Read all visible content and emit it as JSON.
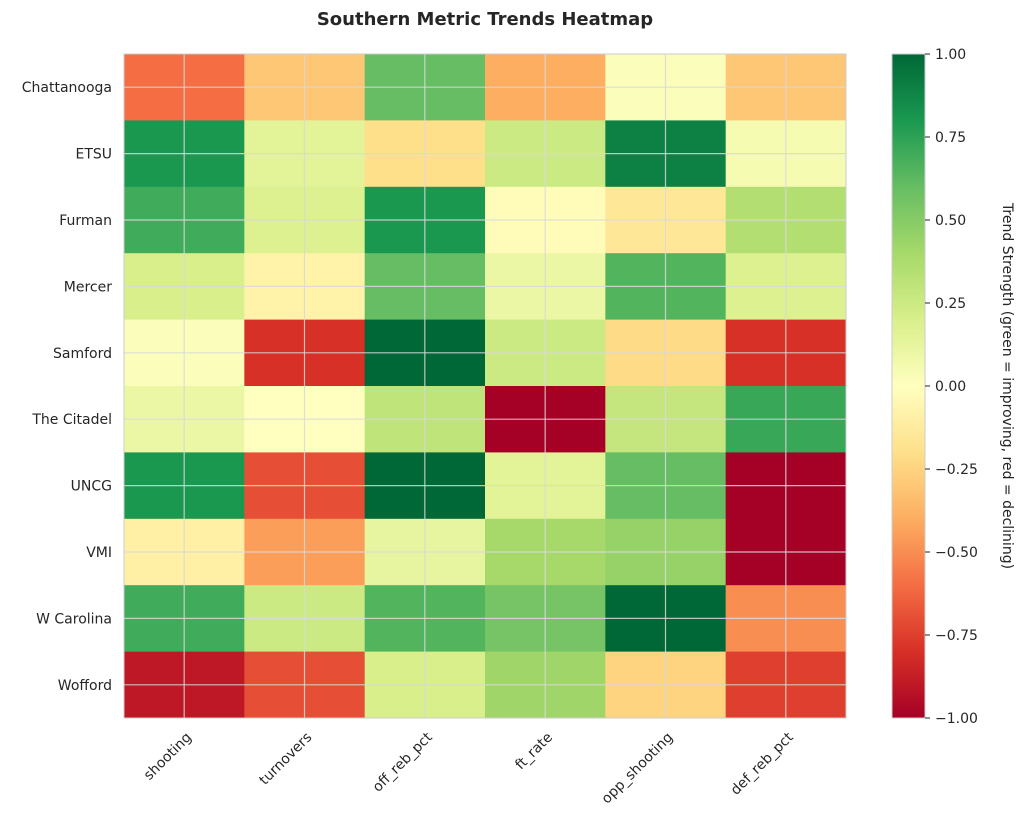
{
  "chart_data": {
    "type": "heatmap",
    "title": "Southern Metric Trends Heatmap",
    "rows": [
      "Chattanooga",
      "ETSU",
      "Furman",
      "Mercer",
      "Samford",
      "The Citadel",
      "UNCG",
      "VMI",
      "W Carolina",
      "Wofford"
    ],
    "columns": [
      "shooting",
      "turnovers",
      "off_reb_pct",
      "ft_rate",
      "opp_shooting",
      "def_reb_pct"
    ],
    "values": [
      [
        -0.6,
        -0.3,
        0.6,
        -0.4,
        0.02,
        -0.3
      ],
      [
        0.8,
        0.15,
        -0.2,
        0.25,
        0.9,
        0.05
      ],
      [
        0.7,
        0.18,
        0.8,
        -0.02,
        -0.15,
        0.35
      ],
      [
        0.2,
        -0.08,
        0.6,
        0.1,
        0.65,
        0.18
      ],
      [
        0.02,
        -0.8,
        1.0,
        0.25,
        -0.22,
        -0.8
      ],
      [
        0.1,
        0.0,
        0.3,
        -1.0,
        0.28,
        0.72
      ],
      [
        0.8,
        -0.7,
        1.0,
        0.15,
        0.6,
        -1.0
      ],
      [
        -0.1,
        -0.45,
        0.12,
        0.4,
        0.45,
        -1.0
      ],
      [
        0.7,
        0.25,
        0.65,
        0.55,
        1.0,
        -0.5
      ],
      [
        -0.9,
        -0.7,
        0.2,
        0.42,
        -0.25,
        -0.75
      ]
    ],
    "vmin": -1.0,
    "vmax": 1.0,
    "colormap": "RdYlGn",
    "colorbar": {
      "label": "Trend Strength (green = improving, red = declining)",
      "ticks": [
        1.0,
        0.75,
        0.5,
        0.25,
        0.0,
        -0.25,
        -0.5,
        -0.75,
        -1.0
      ],
      "tick_labels": [
        "1.00",
        "0.75",
        "0.50",
        "0.25",
        "0.00",
        "−0.25",
        "−0.50",
        "−0.75",
        "−1.00"
      ]
    },
    "grid": true
  }
}
